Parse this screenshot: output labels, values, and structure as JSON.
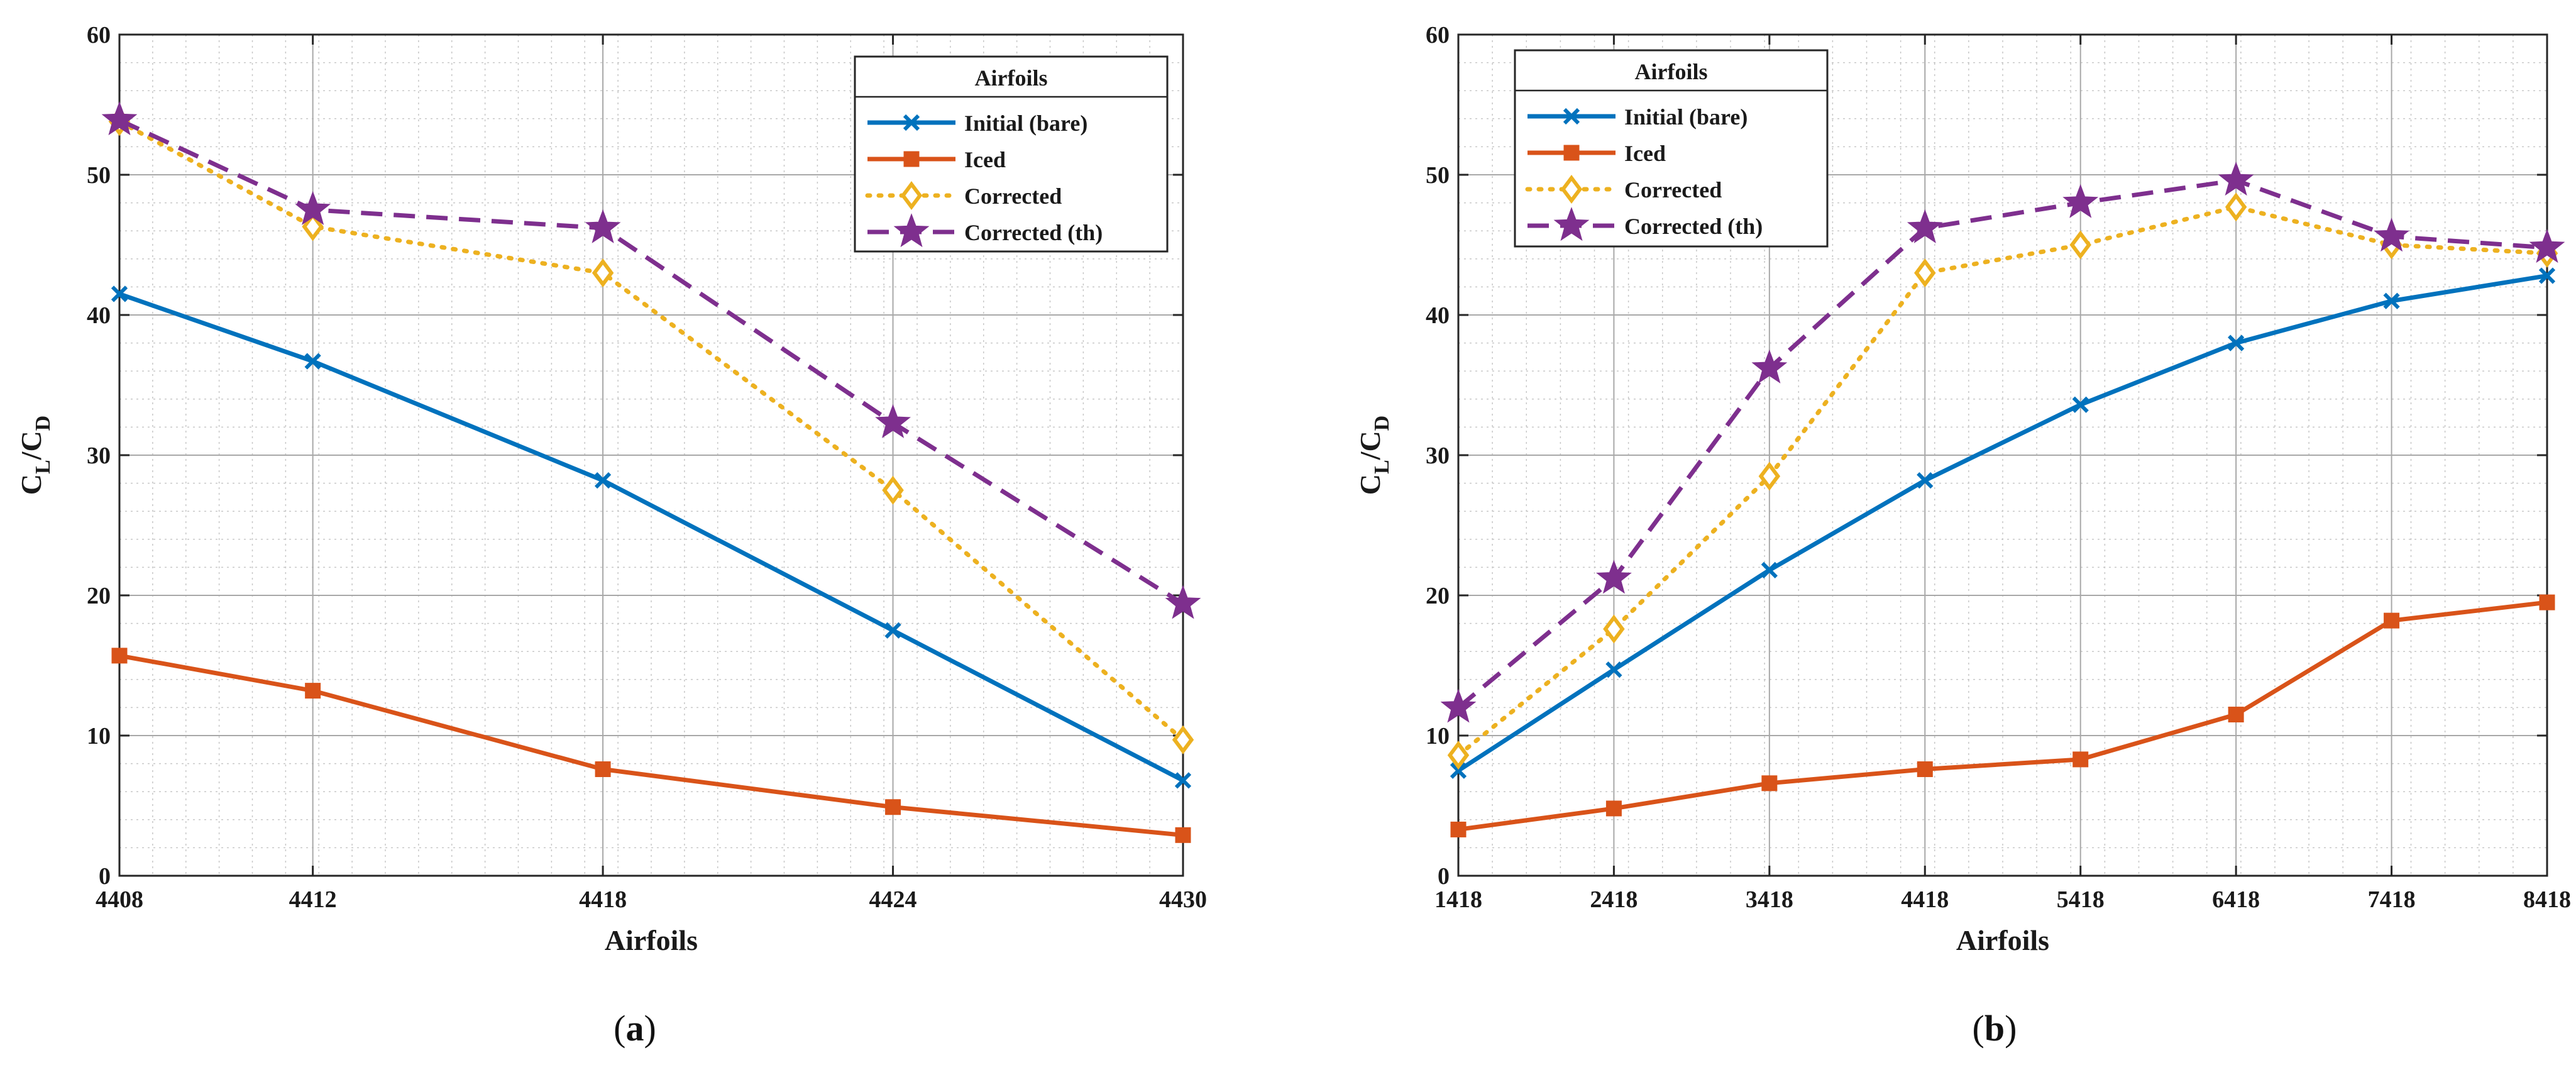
{
  "chart_data": [
    {
      "type": "line",
      "panel_label": "a",
      "categories": [
        "4408",
        "4412",
        "4418",
        "4424",
        "4430"
      ],
      "x": [
        4408,
        4412,
        4418,
        4424,
        4430
      ],
      "xlim": [
        4408,
        4430
      ],
      "ylim": [
        0,
        60
      ],
      "yticks": [
        0,
        10,
        20,
        30,
        40,
        50,
        60
      ],
      "xlabel": "Airfoils",
      "ylabel": {
        "c1": "C",
        "s1": "L",
        "slash": "/",
        "c2": "C",
        "s2": "D"
      },
      "grid": true,
      "legend": {
        "title": "Airfoils",
        "placement": "top-right"
      },
      "series": [
        {
          "name": "Initial (bare)",
          "color": "#0072BD",
          "marker": "x",
          "dash": "solid",
          "values": [
            41.5,
            36.7,
            28.2,
            17.5,
            6.8
          ]
        },
        {
          "name": "Iced",
          "color": "#D95319",
          "marker": "square",
          "dash": "solid",
          "values": [
            15.7,
            13.2,
            7.6,
            4.9,
            2.9
          ]
        },
        {
          "name": "Corrected",
          "color": "#EDB120",
          "marker": "diamond",
          "dash": "dotted",
          "values": [
            53.8,
            46.3,
            43.0,
            27.5,
            9.7
          ]
        },
        {
          "name": "Corrected (th)",
          "color": "#7E2F8E",
          "marker": "star",
          "dash": "dashed",
          "values": [
            53.9,
            47.5,
            46.2,
            32.3,
            19.4
          ]
        }
      ]
    },
    {
      "type": "line",
      "panel_label": "b",
      "categories": [
        "1418",
        "2418",
        "3418",
        "4418",
        "5418",
        "6418",
        "7418",
        "8418"
      ],
      "x": [
        1418,
        2418,
        3418,
        4418,
        5418,
        6418,
        7418,
        8418
      ],
      "xlim": [
        1418,
        8418
      ],
      "ylim": [
        0,
        60
      ],
      "yticks": [
        0,
        10,
        20,
        30,
        40,
        50,
        60
      ],
      "xlabel": "Airfoils",
      "ylabel": {
        "c1": "C",
        "s1": "L",
        "slash": "/",
        "c2": "C",
        "s2": "D"
      },
      "grid": true,
      "legend": {
        "title": "Airfoils",
        "placement": "top-left"
      },
      "series": [
        {
          "name": "Initial (bare)",
          "color": "#0072BD",
          "marker": "x",
          "dash": "solid",
          "values": [
            7.5,
            14.7,
            21.8,
            28.2,
            33.6,
            38.0,
            41.0,
            42.8
          ]
        },
        {
          "name": "Iced",
          "color": "#D95319",
          "marker": "square",
          "dash": "solid",
          "values": [
            3.3,
            4.8,
            6.6,
            7.6,
            8.3,
            11.5,
            18.2,
            19.5
          ]
        },
        {
          "name": "Corrected",
          "color": "#EDB120",
          "marker": "diamond",
          "dash": "dotted",
          "values": [
            8.6,
            17.6,
            28.5,
            43.0,
            45.0,
            47.7,
            45.0,
            44.4
          ]
        },
        {
          "name": "Corrected (th)",
          "color": "#7E2F8E",
          "marker": "star",
          "dash": "dashed",
          "values": [
            12.0,
            21.2,
            36.2,
            46.2,
            48.0,
            49.6,
            45.6,
            44.8
          ]
        }
      ]
    }
  ]
}
